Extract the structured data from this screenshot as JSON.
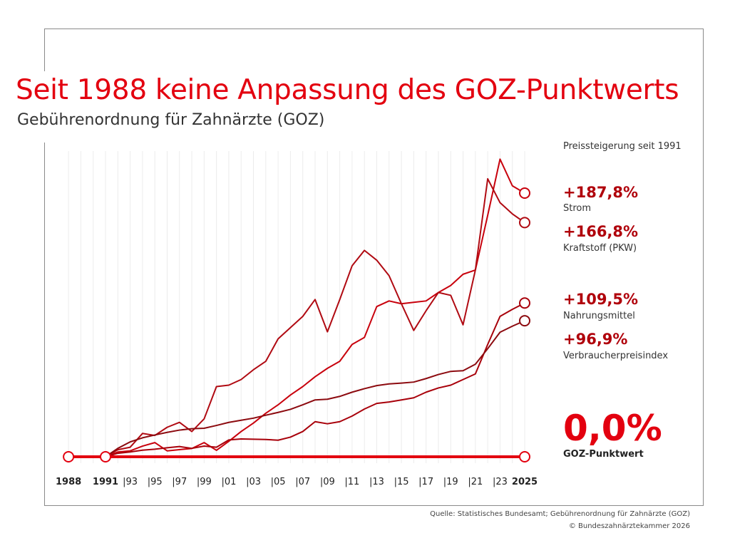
{
  "title": "Seit 1988 keine Anpassung des GOZ-Punktwerts",
  "subtitle": "Gebührenordnung für Zahnärzte (GOZ)",
  "legend_header": "Preissteigerung seit 1991",
  "labels": [
    {
      "value": "+187,8%",
      "name": "Strom"
    },
    {
      "value": "+166,8%",
      "name": "Kraftstoff (PKW)"
    },
    {
      "value": "+109,5%",
      "name": "Nahrungsmittel"
    },
    {
      "value": "+96,9%",
      "name": "Verbraucherpreisindex"
    }
  ],
  "goz_value": "0,0%",
  "goz_name": "GOZ-Punktwert",
  "source": "Quelle: Statistisches Bundesamt; Gebührenordnung für Zahnärzte (GOZ)",
  "copyright": "© Bundeszahnärztekammer 2026",
  "chart_data": {
    "type": "line",
    "title": "Seit 1988 keine Anpassung des GOZ-Punktwerts",
    "xlabel": "",
    "ylabel": "Preissteigerung seit 1991 (%)",
    "xlim": [
      1988,
      2025
    ],
    "ylim": [
      0,
      215
    ],
    "grid": "vertical",
    "x_tick_labels": [
      {
        "year": 1988,
        "label": "1988",
        "bold": true
      },
      {
        "year": 1991,
        "label": "1991",
        "bold": true
      },
      {
        "year": 1993,
        "label": "|93"
      },
      {
        "year": 1995,
        "label": "|95"
      },
      {
        "year": 1997,
        "label": "|97"
      },
      {
        "year": 1999,
        "label": "|99"
      },
      {
        "year": 2001,
        "label": "|01"
      },
      {
        "year": 2003,
        "label": "|03"
      },
      {
        "year": 2005,
        "label": "|05"
      },
      {
        "year": 2007,
        "label": "|07"
      },
      {
        "year": 2009,
        "label": "|09"
      },
      {
        "year": 2011,
        "label": "|11"
      },
      {
        "year": 2013,
        "label": "|13"
      },
      {
        "year": 2015,
        "label": "|15"
      },
      {
        "year": 2017,
        "label": "|17"
      },
      {
        "year": 2019,
        "label": "|19"
      },
      {
        "year": 2021,
        "label": "|21"
      },
      {
        "year": 2023,
        "label": "|23"
      },
      {
        "year": 2025,
        "label": "2025",
        "bold": true
      }
    ],
    "x": [
      1991,
      1992,
      1993,
      1994,
      1995,
      1996,
      1997,
      1998,
      1999,
      2000,
      2001,
      2002,
      2003,
      2004,
      2005,
      2006,
      2007,
      2008,
      2009,
      2010,
      2011,
      2012,
      2013,
      2014,
      2015,
      2016,
      2017,
      2018,
      2019,
      2020,
      2021,
      2022,
      2023,
      2024,
      2025
    ],
    "series": [
      {
        "name": "Strom",
        "color": "#c8000c",
        "values": [
          0,
          3.4,
          4.2,
          7.6,
          10.1,
          4.2,
          5.1,
          5.9,
          10.1,
          4.6,
          11,
          18,
          24,
          31,
          37,
          44,
          50,
          57,
          63,
          68,
          80,
          85,
          107,
          111,
          109,
          110,
          111,
          117,
          122,
          130,
          133,
          172,
          212,
          193,
          187.8
        ]
      },
      {
        "name": "Kraftstoff (PKW)",
        "color": "#b00a12",
        "values": [
          0,
          5,
          6.8,
          16.6,
          15.2,
          21,
          24.5,
          18,
          27,
          50,
          51,
          55,
          62,
          68,
          84,
          92,
          100,
          112,
          89,
          112,
          136,
          147,
          140,
          129,
          109,
          90,
          104,
          117,
          115,
          94,
          133,
          198,
          181,
          173,
          166.8
        ]
      },
      {
        "name": "Nahrungsmittel",
        "color": "#a8000a",
        "values": [
          0,
          2.5,
          3.4,
          4.7,
          5.4,
          6.4,
          7.3,
          6,
          7.6,
          6.8,
          12,
          12.7,
          12.5,
          12.3,
          11.8,
          14,
          18,
          25,
          23.5,
          25,
          29,
          34,
          38,
          39,
          40.5,
          42,
          46,
          49,
          51,
          55,
          59,
          80,
          100,
          105,
          109.5
        ]
      },
      {
        "name": "Verbraucherpreisindex",
        "color": "#8c0a0f",
        "values": [
          0,
          6,
          10.6,
          13.5,
          15.5,
          17.4,
          19,
          20,
          20.3,
          22.3,
          24.5,
          26,
          27.5,
          29.6,
          31.6,
          33.8,
          37,
          40.5,
          41,
          43,
          46,
          48.5,
          50.7,
          51.9,
          52.5,
          53.2,
          55.7,
          58.6,
          60.8,
          61.3,
          65.9,
          77,
          88.7,
          93,
          96.9
        ]
      },
      {
        "name": "GOZ-Punktwert",
        "color": "#e3000f",
        "x": [
          1988,
          1991,
          2025
        ],
        "values": [
          0,
          0,
          0
        ]
      }
    ]
  }
}
